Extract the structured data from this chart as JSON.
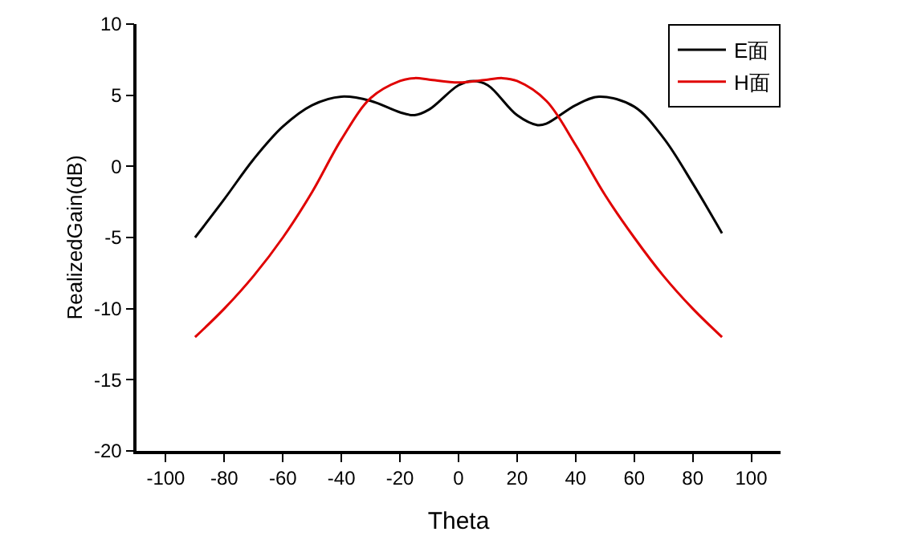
{
  "chart_data": {
    "type": "line",
    "xlabel": "Theta",
    "ylabel": "RealizedGain(dB)",
    "xlim": [
      -110,
      110
    ],
    "xticks": [
      -100,
      -80,
      -60,
      -40,
      -20,
      0,
      20,
      40,
      60,
      80,
      100
    ],
    "ylim": [
      -20,
      10
    ],
    "yticks": [
      -20,
      -15,
      -10,
      -5,
      0,
      5,
      10
    ],
    "legend": "top right",
    "series": [
      {
        "name": "E面",
        "color": "#000000",
        "x": [
          -90,
          -80,
          -70,
          -60,
          -50,
          -40,
          -30,
          -20,
          -15,
          -10,
          0,
          5,
          10,
          20,
          27,
          30,
          40,
          48,
          60,
          70,
          80,
          90
        ],
        "values": [
          -5,
          -2.3,
          0.5,
          2.8,
          4.3,
          4.9,
          4.6,
          3.8,
          3.6,
          4.0,
          5.7,
          6.0,
          5.7,
          3.6,
          2.9,
          3.0,
          4.3,
          4.9,
          4.2,
          2.0,
          -1.2,
          -4.7
        ]
      },
      {
        "name": "H面",
        "color": "#e00000",
        "x": [
          -90,
          -80,
          -70,
          -60,
          -50,
          -40,
          -30,
          -20,
          -15,
          -10,
          0,
          10,
          15,
          20,
          30,
          40,
          50,
          60,
          70,
          80,
          90
        ],
        "values": [
          -12,
          -10,
          -7.7,
          -5,
          -1.8,
          1.9,
          4.8,
          6.0,
          6.2,
          6.1,
          5.9,
          6.1,
          6.2,
          6.0,
          4.6,
          1.5,
          -2,
          -5,
          -7.7,
          -10,
          -12
        ]
      }
    ]
  }
}
